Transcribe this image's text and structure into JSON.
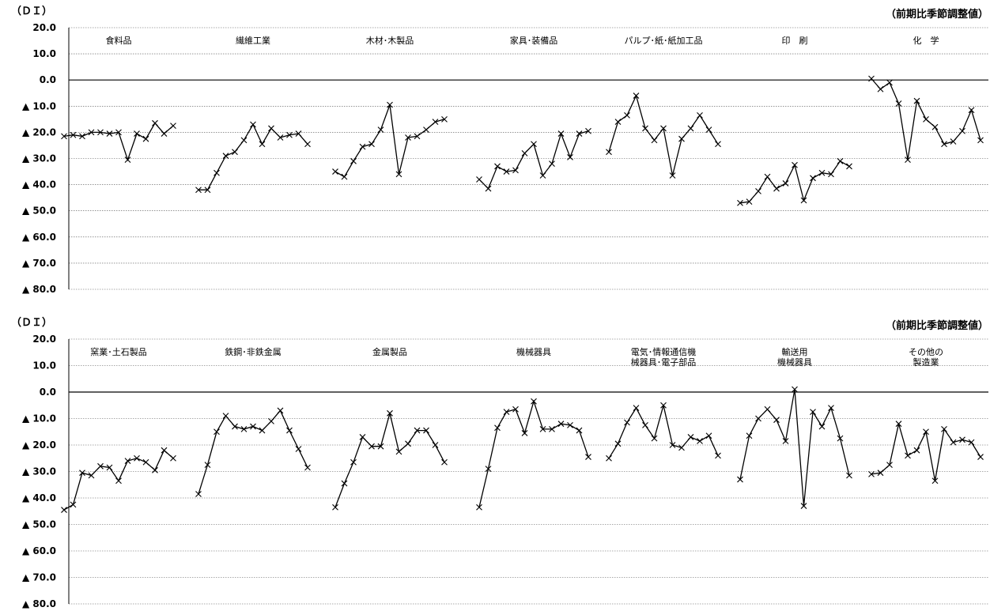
{
  "chart_data": [
    {
      "type": "line",
      "unit_label": "（ＤＩ）",
      "note": "（前期比季節調整値）",
      "ylim": [
        -80,
        20
      ],
      "y_ticks": [
        {
          "value": 20,
          "label": "20.0"
        },
        {
          "value": 10,
          "label": "10.0"
        },
        {
          "value": 0,
          "label": "0.0"
        },
        {
          "value": -10,
          "label": "▲ 10.0"
        },
        {
          "value": -20,
          "label": "▲ 20.0"
        },
        {
          "value": -30,
          "label": "▲ 30.0"
        },
        {
          "value": -40,
          "label": "▲ 40.0"
        },
        {
          "value": -50,
          "label": "▲ 50.0"
        },
        {
          "value": -60,
          "label": "▲ 60.0"
        },
        {
          "value": -70,
          "label": "▲ 70.0"
        },
        {
          "value": -80,
          "label": "▲ 80.0"
        }
      ],
      "grid": true,
      "marker": "x",
      "series": [
        {
          "name": "食料品",
          "values": [
            -21.5,
            -21,
            -21.5,
            -20,
            -20,
            -20.5,
            -20,
            -30.5,
            -20.5,
            -22.5,
            -16.5,
            -20.5,
            -17.5
          ]
        },
        {
          "name": "繊維工業",
          "values": [
            -42,
            -42,
            -35.5,
            -29,
            -27.5,
            -23,
            -17,
            -24.5,
            -18.5,
            -22,
            -21,
            -20.5,
            -24.5
          ]
        },
        {
          "name": "木材･木製品",
          "values": [
            -35,
            -37,
            -31,
            -25.5,
            -24.5,
            -19,
            -9.5,
            -36,
            -22,
            -21.5,
            -19,
            -16,
            -15
          ]
        },
        {
          "name": "家具･装備品",
          "values": [
            -38,
            -41.5,
            -33,
            -35,
            -34.5,
            -28,
            -24.5,
            -36.5,
            -32,
            -20.5,
            -29.5,
            -20.5,
            -19.5
          ]
        },
        {
          "name": "パルプ･紙･紙加工品",
          "values": [
            -27.5,
            -16,
            -13.5,
            -6,
            -18.5,
            -23,
            -18.5,
            -36.5,
            -22.5,
            -18.5,
            -13.5,
            -19,
            -24.5
          ]
        },
        {
          "name": "印　刷",
          "values": [
            -47,
            -46.5,
            -42.5,
            -37,
            -41.5,
            -39.5,
            -32.5,
            -46,
            -37.5,
            -35.5,
            -36,
            -31,
            -33
          ]
        },
        {
          "name": "化　学",
          "values": [
            0.5,
            -3.5,
            -1,
            -9,
            -30.5,
            -8,
            -15,
            -18,
            -24.5,
            -23.5,
            -19.5,
            -11.5,
            -23
          ]
        }
      ]
    },
    {
      "type": "line",
      "unit_label": "（ＤＩ）",
      "note": "（前期比季節調整値）",
      "ylim": [
        -80,
        20
      ],
      "y_ticks": [
        {
          "value": 20,
          "label": "20.0"
        },
        {
          "value": 10,
          "label": "10.0"
        },
        {
          "value": 0,
          "label": "0.0"
        },
        {
          "value": -10,
          "label": "▲ 10.0"
        },
        {
          "value": -20,
          "label": "▲ 20.0"
        },
        {
          "value": -30,
          "label": "▲ 30.0"
        },
        {
          "value": -40,
          "label": "▲ 40.0"
        },
        {
          "value": -50,
          "label": "▲ 50.0"
        },
        {
          "value": -60,
          "label": "▲ 60.0"
        },
        {
          "value": -70,
          "label": "▲ 70.0"
        },
        {
          "value": -80,
          "label": "▲ 80.0"
        }
      ],
      "grid": true,
      "marker": "x",
      "series": [
        {
          "name": "窯業･土石製品",
          "values": [
            -44.5,
            -42.5,
            -30.5,
            -31.5,
            -28,
            -28.5,
            -33.5,
            -26,
            -25,
            -26.5,
            -29.5,
            -22,
            -25
          ]
        },
        {
          "name": "鉄鋼･非鉄金属",
          "values": [
            -38.5,
            -27.5,
            -15,
            -9,
            -13,
            -14,
            -13,
            -14.5,
            -11,
            -7,
            -14.5,
            -21.5,
            -28.5
          ]
        },
        {
          "name": "金属製品",
          "values": [
            -43.5,
            -34.5,
            -26.5,
            -17,
            -20.5,
            -20.5,
            -8,
            -22.5,
            -19.5,
            -14.5,
            -14.5,
            -20,
            -26.5
          ]
        },
        {
          "name": "機械器具",
          "values": [
            -43.5,
            -29,
            -13.5,
            -7.5,
            -6.5,
            -15.5,
            -3.5,
            -14,
            -14,
            -12,
            -12.5,
            -14.5,
            -24.5
          ]
        },
        {
          "name": "電気･情報通信機\n械器具･電子部品",
          "values": [
            -25,
            -19.5,
            -11.5,
            -6,
            -12.5,
            -17.5,
            -5,
            -20,
            -21,
            -17,
            -18.5,
            -16.5,
            -24
          ]
        },
        {
          "name": "輸送用\n機械器具",
          "values": [
            -33,
            -16.5,
            -10,
            -6.5,
            -10.5,
            -18.5,
            1,
            -43,
            -7.5,
            -13,
            -6,
            -17.5,
            -31.5
          ]
        },
        {
          "name": "その他の\n製造業",
          "values": [
            -31,
            -30.5,
            -27.5,
            -12,
            -24,
            -22,
            -15,
            -33.5,
            -14,
            -19,
            -18,
            -19,
            -24.5
          ]
        }
      ]
    }
  ]
}
